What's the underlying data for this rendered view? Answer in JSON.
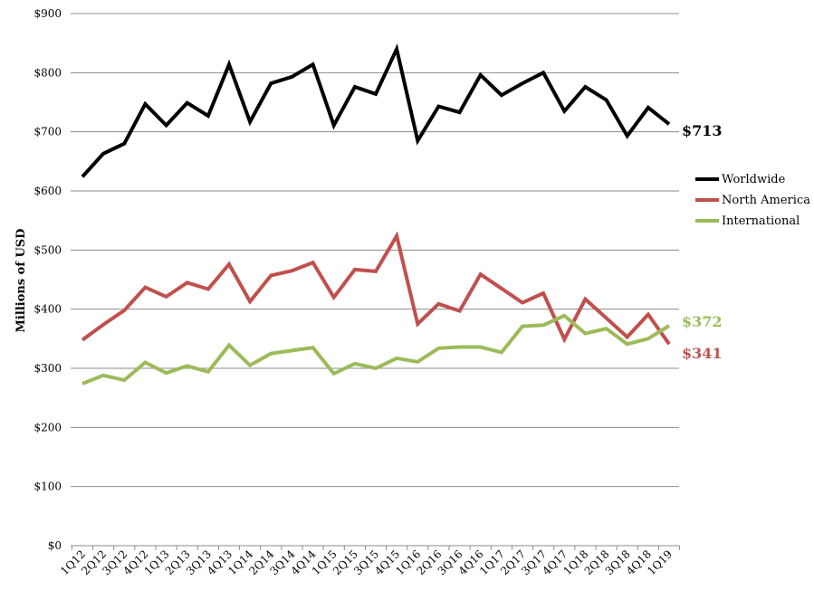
{
  "chart_data": {
    "type": "line",
    "title": "",
    "xlabel": "",
    "ylabel": "Millions of USD",
    "ylim": [
      0,
      900
    ],
    "y_ticks": [
      "$0",
      "$100",
      "$200",
      "$300",
      "$400",
      "$500",
      "$600",
      "$700",
      "$800",
      "$900"
    ],
    "grid": true,
    "legend": "right",
    "categories": [
      "1Q12",
      "2Q12",
      "3Q12",
      "4Q12",
      "1Q13",
      "2Q13",
      "3Q13",
      "4Q13",
      "1Q14",
      "2Q14",
      "3Q14",
      "4Q14",
      "1Q15",
      "2Q15",
      "3Q15",
      "4Q15",
      "1Q16",
      "2Q16",
      "3Q16",
      "4Q16",
      "1Q17",
      "2Q17",
      "3Q17",
      "4Q17",
      "1Q18",
      "2Q18",
      "3Q18",
      "4Q18",
      "1Q19"
    ],
    "series": [
      {
        "name": "Worldwide",
        "color": "#000000",
        "end_label": "$713",
        "values": [
          624,
          663,
          680,
          747,
          711,
          749,
          727,
          814,
          717,
          782,
          793,
          814,
          711,
          776,
          764,
          840,
          685,
          743,
          733,
          796,
          762,
          782,
          800,
          735,
          776,
          754,
          693,
          741,
          713
        ]
      },
      {
        "name": "North America",
        "color": "#c0504d",
        "end_label": "$341",
        "values": [
          348,
          374,
          398,
          437,
          421,
          445,
          434,
          476,
          413,
          457,
          465,
          479,
          420,
          467,
          464,
          524,
          375,
          409,
          397,
          459,
          435,
          411,
          427,
          349,
          417,
          385,
          353,
          391,
          341
        ]
      },
      {
        "name": "International",
        "color": "#9bbb59",
        "end_label": "$372",
        "values": [
          274,
          288,
          280,
          310,
          292,
          304,
          294,
          339,
          305,
          325,
          330,
          335,
          291,
          308,
          300,
          317,
          311,
          334,
          336,
          336,
          327,
          371,
          373,
          389,
          359,
          367,
          341,
          350,
          372
        ]
      }
    ]
  }
}
